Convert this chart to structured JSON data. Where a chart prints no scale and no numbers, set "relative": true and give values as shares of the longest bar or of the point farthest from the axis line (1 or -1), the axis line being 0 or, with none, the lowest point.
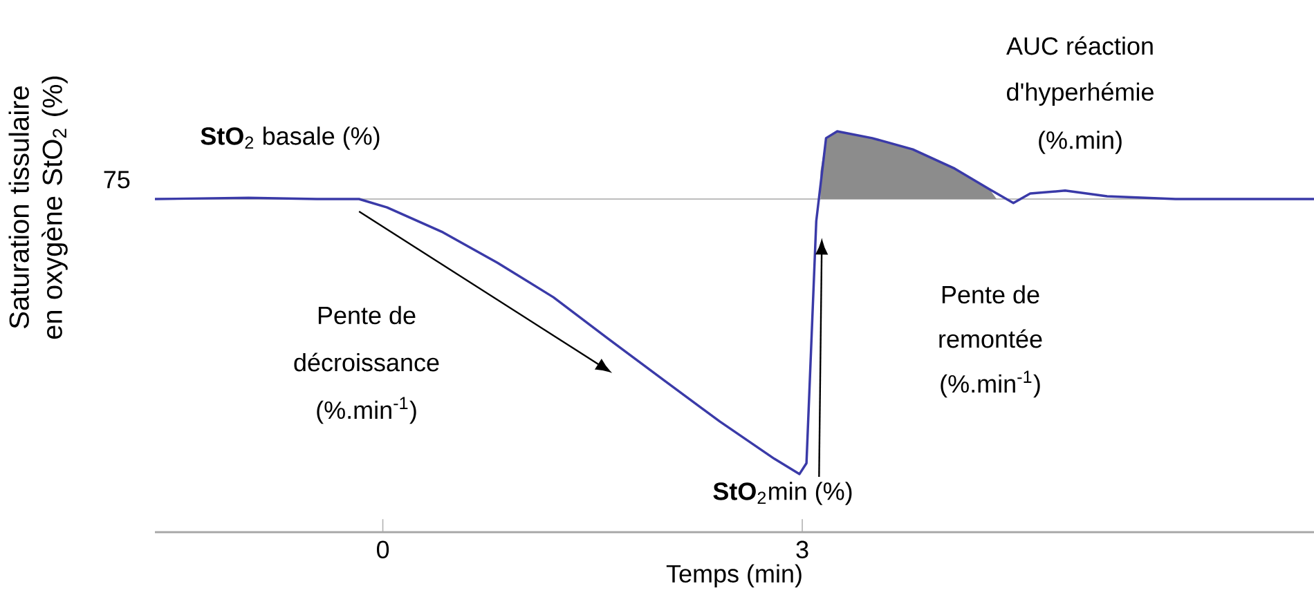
{
  "chart_data": {
    "type": "line",
    "relative": true,
    "xlabel": "Temps (min)",
    "ylabel": "Saturation tissulaire en oxygène StO$_{2}$ (%)",
    "xlim": [
      -1.63,
      6.66
    ],
    "xticks": [
      0,
      3
    ],
    "series": [
      {
        "type": "area",
        "color": "#8c8c8c",
        "x": [
          3.13,
          3.17,
          3.25,
          3.5,
          3.79,
          4.09,
          4.34,
          4.39
        ],
        "values": [
          0.9,
          0.983,
          1.0,
          0.983,
          0.955,
          0.907,
          0.855,
          0.831
        ]
      },
      {
        "color": "#3a3aa8",
        "x": [
          -1.63,
          -0.96,
          -0.47,
          -0.17,
          0.03,
          0.43,
          0.82,
          1.22,
          1.61,
          2.01,
          2.41,
          2.8,
          2.98,
          3.03,
          3.1,
          3.17,
          3.25,
          3.5,
          3.79,
          4.09,
          4.34,
          4.51,
          4.63,
          4.88,
          5.18,
          5.67,
          6.66
        ],
        "values": [
          0.831,
          0.834,
          0.831,
          0.831,
          0.81,
          0.748,
          0.672,
          0.586,
          0.483,
          0.379,
          0.276,
          0.183,
          0.145,
          0.172,
          0.776,
          0.983,
          1.0,
          0.983,
          0.955,
          0.907,
          0.855,
          0.821,
          0.845,
          0.852,
          0.838,
          0.831,
          0.831
        ]
      }
    ],
    "ref_lines": [
      {
        "axis": "y",
        "value": 0.831,
        "color": "#bdbdbd"
      }
    ],
    "annotations": [
      "75",
      "**StO**$_{2}$ basale (%)",
      "Pente de",
      "décroissance",
      "(%.min$^{-1}$)",
      "Pente de",
      "remontée",
      "(%.min$^{-1}$)",
      "**StO**$_{2}$min (%)",
      "AUC réaction",
      "d'hyperhémie",
      "(%.min)"
    ]
  }
}
